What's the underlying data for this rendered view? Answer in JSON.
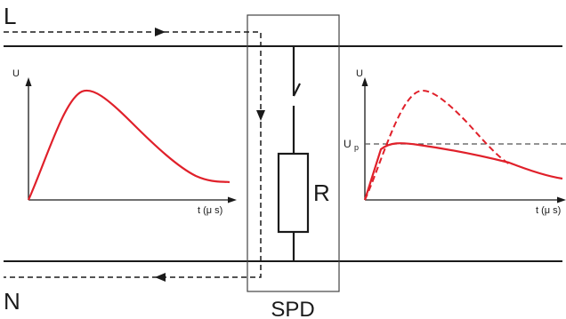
{
  "diagram": {
    "line_label": "L",
    "neutral_label": "N",
    "spd_label": "SPD",
    "resistor_label": "R",
    "left_plot": {
      "y_axis_label": "U",
      "x_axis_label": "t (μ s)"
    },
    "right_plot": {
      "y_axis_label": "U",
      "protection_level_label": "U",
      "protection_level_subscript": "p",
      "x_axis_label": "t (μ s)"
    }
  },
  "colors": {
    "conductor": "#1a1a1a",
    "surge_curve": "#e0202a",
    "guide_dash": "#555555",
    "box_border": "#444444"
  }
}
